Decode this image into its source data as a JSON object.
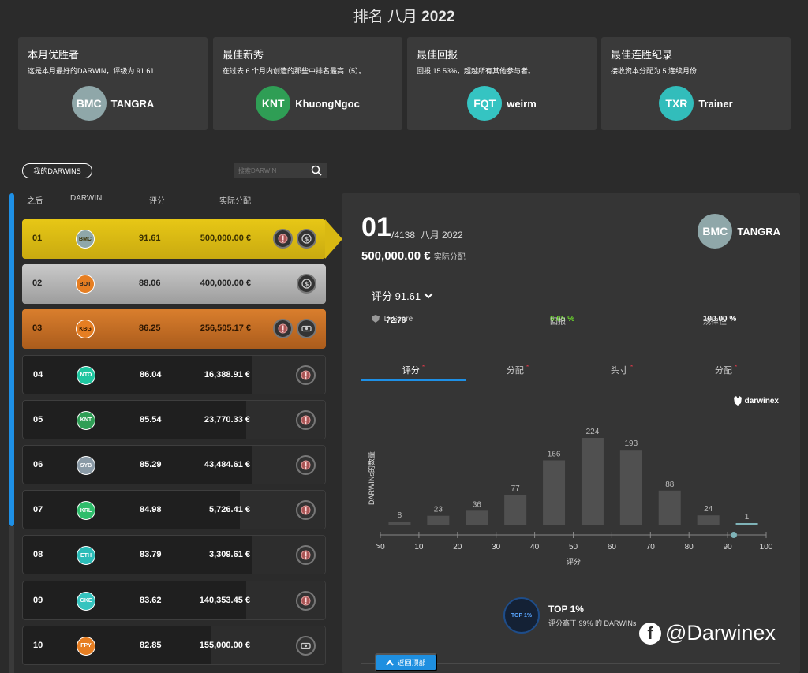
{
  "header": {
    "title_prefix": "排名 八月",
    "title_year": "2022"
  },
  "cards": [
    {
      "title": "本月优胜者",
      "desc": "这是本月最好的DARWIN，评级为 91.61",
      "code": "BMC",
      "name": "TANGRA",
      "color": "#8fa7a9"
    },
    {
      "title": "最佳新秀",
      "desc": "在过去 6 个月内创造的那些中排名最高（5）。",
      "code": "KNT",
      "name": "KhuongNgoc",
      "color": "#2f9e55"
    },
    {
      "title": "最佳回报",
      "desc": "回报 15.53%，超越所有其他参与者。",
      "code": "FQT",
      "name": "weirm",
      "color": "#35c4c2"
    },
    {
      "title": "最佳连胜纪录",
      "desc": "接收资本分配为 5 连续月份",
      "code": "TXR",
      "name": "Trainer",
      "color": "#32bdbb"
    }
  ],
  "list": {
    "my_darwins_label": "我的DARWINS",
    "search_placeholder": "搜索DARWIN",
    "headers": {
      "rank": "之后",
      "darwin": "DARWIN",
      "score": "评分",
      "alloc": "实际分配"
    },
    "rows": [
      {
        "rank": "01",
        "code": "BMC",
        "score": "91.61",
        "alloc": "500,000.00 €",
        "color": "#8fa7a9",
        "style": "gold",
        "badges": [
          "medal",
          "coin"
        ],
        "bar": 0
      },
      {
        "rank": "02",
        "code": "BOT",
        "score": "88.06",
        "alloc": "400,000.00 €",
        "color": "#e67e22",
        "style": "silver",
        "badges": [
          "coin"
        ],
        "bar": 0
      },
      {
        "rank": "03",
        "code": "KBG",
        "score": "86.25",
        "alloc": "256,505.17 €",
        "color": "#e67e22",
        "style": "bronze",
        "badges": [
          "medal",
          "cash"
        ],
        "bar": 0
      },
      {
        "rank": "04",
        "code": "NTO",
        "score": "86.04",
        "alloc": "16,388.91 €",
        "color": "#1fc6a0",
        "style": "",
        "badges": [
          "medal"
        ],
        "bar": 92
      },
      {
        "rank": "05",
        "code": "KNT",
        "score": "85.54",
        "alloc": "23,770.33 €",
        "color": "#2f9e55",
        "style": "",
        "badges": [
          "medal"
        ],
        "bar": 100
      },
      {
        "rank": "06",
        "code": "SYB",
        "score": "85.29",
        "alloc": "43,484.61 €",
        "color": "#8a9aa6",
        "style": "",
        "badges": [
          "medal"
        ],
        "bar": 92
      },
      {
        "rank": "07",
        "code": "KRL",
        "score": "84.98",
        "alloc": "5,726.41 €",
        "color": "#2fbd6b",
        "style": "",
        "badges": [
          "medal"
        ],
        "bar": 108
      },
      {
        "rank": "08",
        "code": "ETH",
        "score": "83.79",
        "alloc": "3,309.61 €",
        "color": "#2bbcb8",
        "style": "",
        "badges": [
          "medal"
        ],
        "bar": 92
      },
      {
        "rank": "09",
        "code": "GKE",
        "score": "83.62",
        "alloc": "140,353.45 €",
        "color": "#35c4bf",
        "style": "",
        "badges": [
          "medal"
        ],
        "bar": 100
      },
      {
        "rank": "10",
        "code": "FPY",
        "score": "82.85",
        "alloc": "155,000.00 €",
        "color": "#e67e22",
        "style": "",
        "badges": [
          "cash"
        ],
        "bar": 145
      }
    ]
  },
  "detail": {
    "rank": "01",
    "total": "/4138",
    "month": "八月 2022",
    "alloc_value": "500,000.00 €",
    "alloc_label": "实际分配",
    "code": "BMC",
    "name": "TANGRA",
    "avatar_color": "#8fa7a9",
    "score_label": "评分 91.61",
    "dscore_label": "D-Score",
    "dscore_value": "72.78",
    "return_label": "回报",
    "return_value": "6.65 %",
    "regularity_label": "规律性",
    "regularity_value": "100.00 %",
    "tabs": [
      {
        "label": "评分",
        "active": true
      },
      {
        "label": "分配",
        "active": false
      },
      {
        "label": "头寸",
        "active": false
      },
      {
        "label": "分配",
        "active": false
      }
    ],
    "logo_text": "darwinex",
    "top_title": "TOP 1%",
    "top_desc": "评分高于 99% 的 DARWINs",
    "top_ring": "TOP 1%"
  },
  "chart_data": {
    "type": "bar",
    "categories": [
      ">0",
      "10",
      "20",
      "30",
      "40",
      "50",
      "60",
      "70",
      "80",
      "90"
    ],
    "values": [
      8,
      23,
      36,
      77,
      166,
      224,
      193,
      88,
      24,
      1
    ],
    "ticks": [
      ">0",
      "10",
      "20",
      "30",
      "40",
      "50",
      "60",
      "70",
      "80",
      "90",
      "100"
    ],
    "xlabel": "评分",
    "ylabel": "DARWINs的数量",
    "marker_value": 91.61,
    "highlight_color": "#7fb3b8",
    "bar_color": "#505050"
  },
  "footer": {
    "back_to_top": "返回顶部",
    "watermark": "@Darwinex"
  }
}
